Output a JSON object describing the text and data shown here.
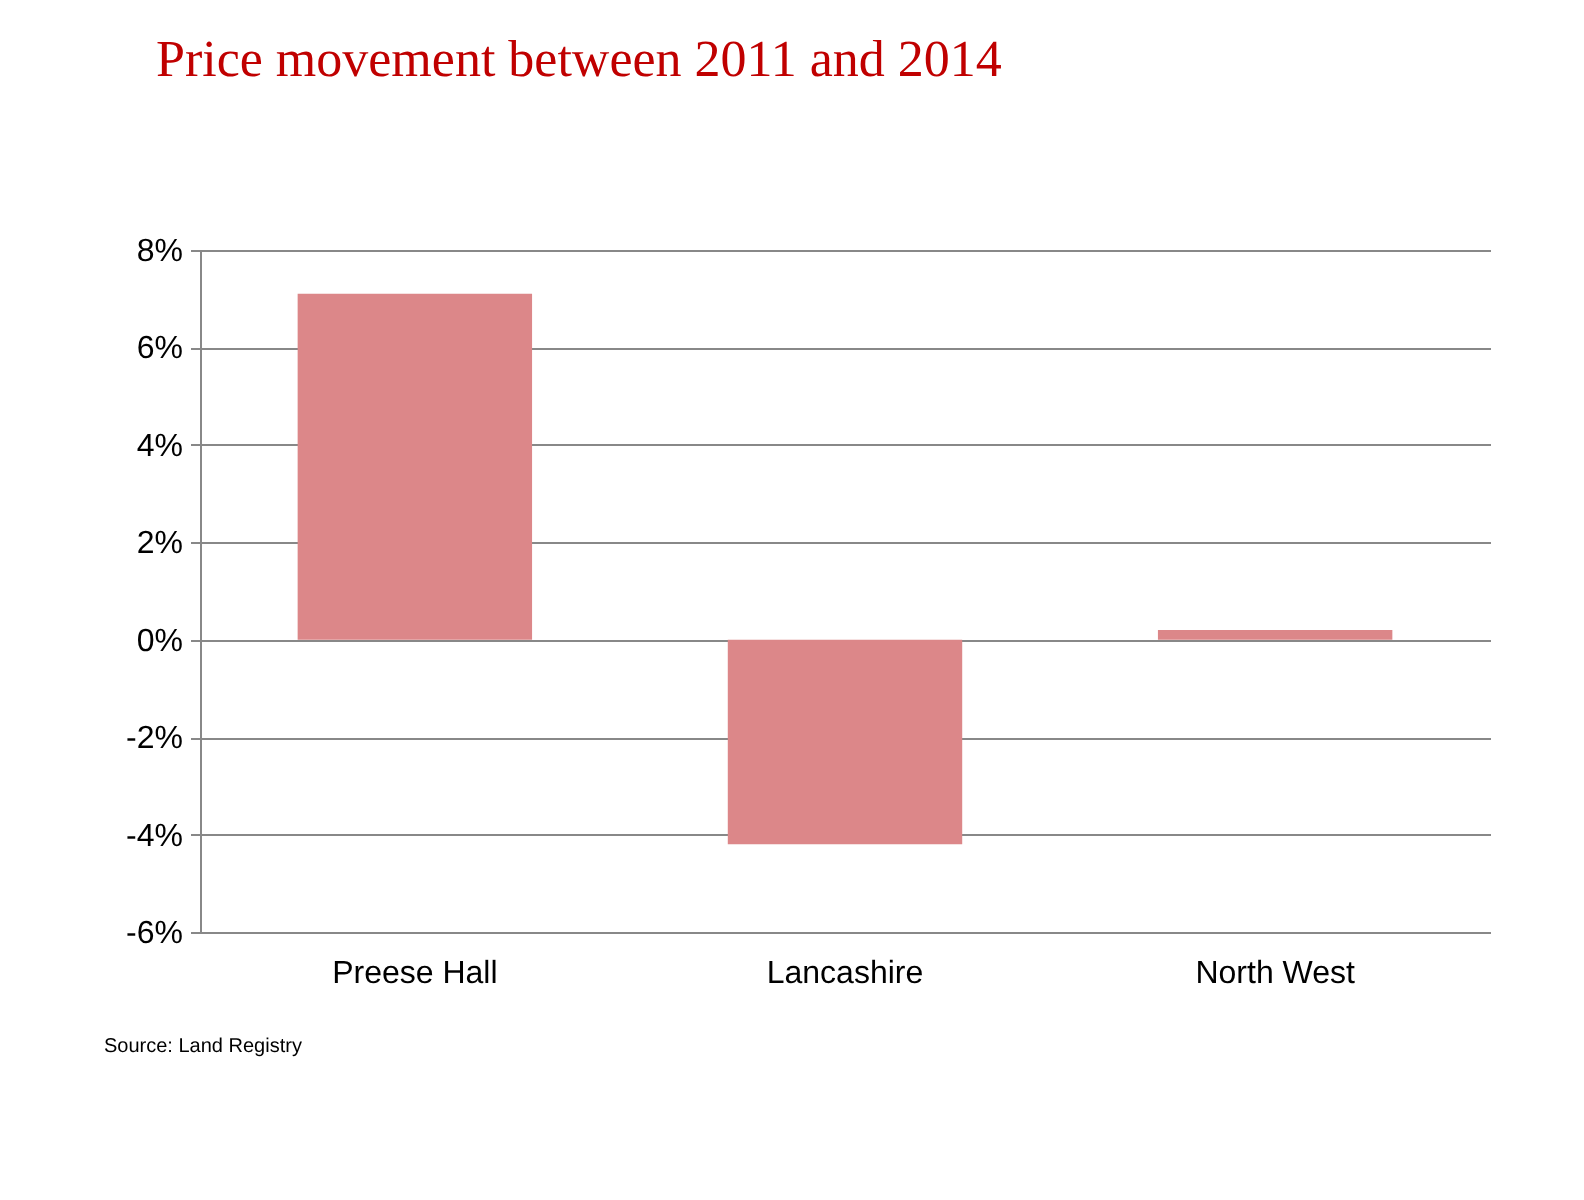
{
  "chart_data": {
    "type": "bar",
    "title": "Price movement between 2011 and 2014",
    "categories": [
      "Preese Hall",
      "Lancashire",
      "North West"
    ],
    "values": [
      7.1,
      -4.2,
      0.2
    ],
    "color": "#dc8789",
    "ylim": [
      -6,
      8
    ],
    "yticks": [
      {
        "value": -6,
        "label": "-6%"
      },
      {
        "value": -4,
        "label": "-4%"
      },
      {
        "value": -2,
        "label": "-2%"
      },
      {
        "value": 0,
        "label": "0%"
      },
      {
        "value": 2,
        "label": "2%"
      },
      {
        "value": 4,
        "label": "4%"
      },
      {
        "value": 6,
        "label": "6%"
      },
      {
        "value": 8,
        "label": "8%"
      }
    ],
    "grid": "y",
    "annotations": [
      "Source: Land Registry"
    ]
  }
}
